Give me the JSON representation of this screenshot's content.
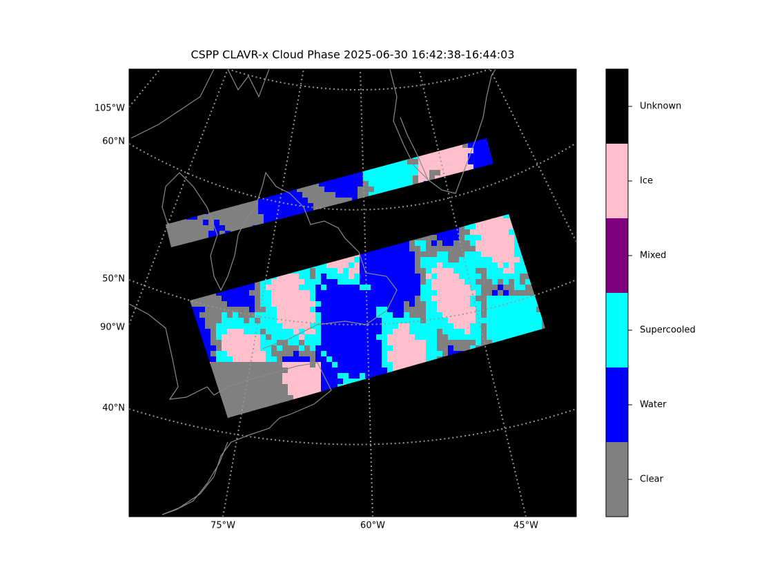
{
  "title": "CSPP CLAVR-x Cloud Phase 2025-06-30 16:42:38-16:44:03",
  "map": {
    "left_labels": [
      "105°W",
      "60°N",
      "50°N",
      "90°W",
      "40°N"
    ],
    "bottom_labels": [
      "75°W",
      "60°W",
      "45°W"
    ]
  },
  "colorbar": {
    "categories": [
      {
        "label": "Unknown",
        "color": "#000000"
      },
      {
        "label": "Ice",
        "color": "#ffc0cb"
      },
      {
        "label": "Mixed",
        "color": "#800080"
      },
      {
        "label": "Supercooled",
        "color": "#00ffff"
      },
      {
        "label": "Water",
        "color": "#0000ff"
      },
      {
        "label": "Clear",
        "color": "#808080"
      }
    ]
  }
}
